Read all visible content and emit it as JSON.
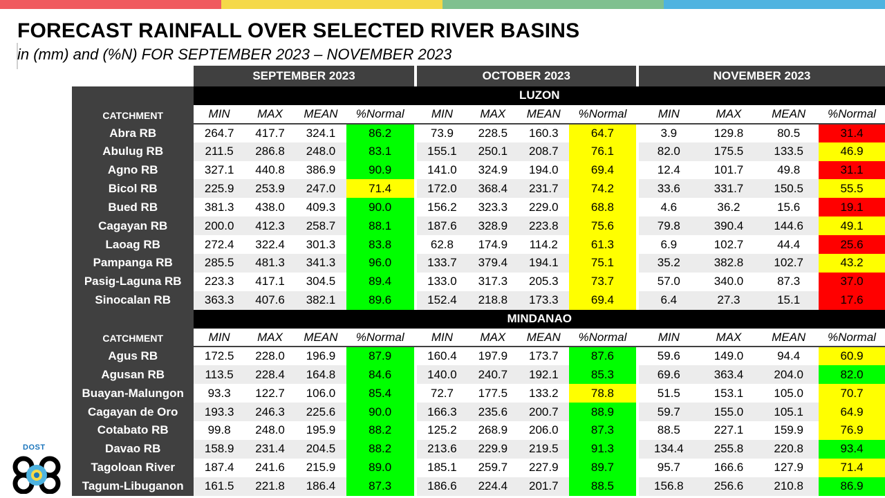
{
  "colors": {
    "bar": [
      "#f05a5f",
      "#f5d948",
      "#7fc08f",
      "#4eb3e0"
    ],
    "header_bg": "#404040",
    "green": "#00ff00",
    "yellow": "#ffff00",
    "red": "#ff0000"
  },
  "title": "FORECAST RAINFALL OVER SELECTED RIVER BASINS",
  "subtitle": "in (mm) and (%N) FOR  SEPTEMBER 2023 – NOVEMBER 2023",
  "months": [
    "SEPTEMBER 2023",
    "OCTOBER 2023",
    "NOVEMBER 2023"
  ],
  "catchment_label": "CATCHMENT",
  "column_labels": [
    "MIN",
    "MAX",
    "MEAN",
    "%Normal"
  ],
  "logo": {
    "text": "DOST",
    "icon": "dost-logo-icon"
  },
  "regions": [
    {
      "name": "LUZON",
      "rows": [
        {
          "name": "Abra RB",
          "sep": [
            "264.7",
            "417.7",
            "324.1",
            "86.2"
          ],
          "sep_c": "g",
          "oct": [
            "73.9",
            "228.5",
            "160.3",
            "64.7"
          ],
          "oct_c": "y",
          "nov": [
            "3.9",
            "129.8",
            "80.5",
            "31.4"
          ],
          "nov_c": "r"
        },
        {
          "name": "Abulug RB",
          "sep": [
            "211.5",
            "286.8",
            "248.0",
            "83.1"
          ],
          "sep_c": "g",
          "oct": [
            "155.1",
            "250.1",
            "208.7",
            "76.1"
          ],
          "oct_c": "y",
          "nov": [
            "82.0",
            "175.5",
            "133.5",
            "46.9"
          ],
          "nov_c": "y"
        },
        {
          "name": "Agno RB",
          "sep": [
            "327.1",
            "440.8",
            "386.9",
            "90.9"
          ],
          "sep_c": "g",
          "oct": [
            "141.0",
            "324.9",
            "194.0",
            "69.4"
          ],
          "oct_c": "y",
          "nov": [
            "12.4",
            "101.7",
            "49.8",
            "31.1"
          ],
          "nov_c": "r"
        },
        {
          "name": "Bicol RB",
          "sep": [
            "225.9",
            "253.9",
            "247.0",
            "71.4"
          ],
          "sep_c": "y",
          "oct": [
            "172.0",
            "368.4",
            "231.7",
            "74.2"
          ],
          "oct_c": "y",
          "nov": [
            "33.6",
            "331.7",
            "150.5",
            "55.5"
          ],
          "nov_c": "y"
        },
        {
          "name": "Bued RB",
          "sep": [
            "381.3",
            "438.0",
            "409.3",
            "90.0"
          ],
          "sep_c": "g",
          "oct": [
            "156.2",
            "323.3",
            "229.0",
            "68.8"
          ],
          "oct_c": "y",
          "nov": [
            "4.6",
            "36.2",
            "15.6",
            "19.1"
          ],
          "nov_c": "r"
        },
        {
          "name": "Cagayan RB",
          "sep": [
            "200.0",
            "412.3",
            "258.7",
            "88.1"
          ],
          "sep_c": "g",
          "oct": [
            "187.6",
            "328.9",
            "223.8",
            "75.6"
          ],
          "oct_c": "y",
          "nov": [
            "79.8",
            "390.4",
            "144.6",
            "49.1"
          ],
          "nov_c": "y"
        },
        {
          "name": "Laoag RB",
          "sep": [
            "272.4",
            "322.4",
            "301.3",
            "83.8"
          ],
          "sep_c": "g",
          "oct": [
            "62.8",
            "174.9",
            "114.2",
            "61.3"
          ],
          "oct_c": "y",
          "nov": [
            "6.9",
            "102.7",
            "44.4",
            "25.6"
          ],
          "nov_c": "r"
        },
        {
          "name": "Pampanga RB",
          "sep": [
            "285.5",
            "481.3",
            "341.3",
            "96.0"
          ],
          "sep_c": "g",
          "oct": [
            "133.7",
            "379.4",
            "194.1",
            "75.1"
          ],
          "oct_c": "y",
          "nov": [
            "35.2",
            "382.8",
            "102.7",
            "43.2"
          ],
          "nov_c": "y"
        },
        {
          "name": "Pasig-Laguna RB",
          "sep": [
            "223.3",
            "417.1",
            "304.5",
            "89.4"
          ],
          "sep_c": "g",
          "oct": [
            "133.0",
            "317.3",
            "205.3",
            "73.7"
          ],
          "oct_c": "y",
          "nov": [
            "57.0",
            "340.0",
            "87.3",
            "37.0"
          ],
          "nov_c": "r"
        },
        {
          "name": "Sinocalan RB",
          "sep": [
            "363.3",
            "407.6",
            "382.1",
            "89.6"
          ],
          "sep_c": "g",
          "oct": [
            "152.4",
            "218.8",
            "173.3",
            "69.4"
          ],
          "oct_c": "y",
          "nov": [
            "6.4",
            "27.3",
            "15.1",
            "17.6"
          ],
          "nov_c": "r"
        }
      ]
    },
    {
      "name": "MINDANAO",
      "rows": [
        {
          "name": "Agus RB",
          "sep": [
            "172.5",
            "228.0",
            "196.9",
            "87.9"
          ],
          "sep_c": "g",
          "oct": [
            "160.4",
            "197.9",
            "173.7",
            "87.6"
          ],
          "oct_c": "g",
          "nov": [
            "59.6",
            "149.0",
            "94.4",
            "60.9"
          ],
          "nov_c": "y"
        },
        {
          "name": "Agusan RB",
          "sep": [
            "113.5",
            "228.4",
            "164.8",
            "84.6"
          ],
          "sep_c": "g",
          "oct": [
            "140.0",
            "240.7",
            "192.1",
            "85.3"
          ],
          "oct_c": "g",
          "nov": [
            "69.6",
            "363.4",
            "204.0",
            "82.0"
          ],
          "nov_c": "g"
        },
        {
          "name": "Buayan-Malungon",
          "sep": [
            "93.3",
            "122.7",
            "106.0",
            "85.4"
          ],
          "sep_c": "g",
          "oct": [
            "72.7",
            "177.5",
            "133.2",
            "78.8"
          ],
          "oct_c": "y",
          "nov": [
            "51.5",
            "153.1",
            "105.0",
            "70.7"
          ],
          "nov_c": "y"
        },
        {
          "name": "Cagayan de Oro",
          "sep": [
            "193.3",
            "246.3",
            "225.6",
            "90.0"
          ],
          "sep_c": "g",
          "oct": [
            "166.3",
            "235.6",
            "200.7",
            "88.9"
          ],
          "oct_c": "g",
          "nov": [
            "59.7",
            "155.0",
            "105.1",
            "64.9"
          ],
          "nov_c": "y"
        },
        {
          "name": "Cotabato RB",
          "sep": [
            "99.8",
            "248.0",
            "195.9",
            "88.2"
          ],
          "sep_c": "g",
          "oct": [
            "125.2",
            "268.9",
            "206.0",
            "87.3"
          ],
          "oct_c": "g",
          "nov": [
            "88.5",
            "227.1",
            "159.9",
            "76.9"
          ],
          "nov_c": "y"
        },
        {
          "name": "Davao RB",
          "sep": [
            "158.9",
            "231.4",
            "204.5",
            "88.2"
          ],
          "sep_c": "g",
          "oct": [
            "213.6",
            "229.9",
            "219.5",
            "91.3"
          ],
          "oct_c": "g",
          "nov": [
            "134.4",
            "255.8",
            "220.8",
            "93.4"
          ],
          "nov_c": "g"
        },
        {
          "name": "Tagoloan River",
          "sep": [
            "187.4",
            "241.6",
            "215.9",
            "89.0"
          ],
          "sep_c": "g",
          "oct": [
            "185.1",
            "259.7",
            "227.9",
            "89.7"
          ],
          "oct_c": "g",
          "nov": [
            "95.7",
            "166.6",
            "127.9",
            "71.4"
          ],
          "nov_c": "y"
        },
        {
          "name": "Tagum-Libuganon",
          "sep": [
            "161.5",
            "221.8",
            "186.4",
            "87.3"
          ],
          "sep_c": "g",
          "oct": [
            "186.6",
            "224.4",
            "201.7",
            "88.5"
          ],
          "oct_c": "g",
          "nov": [
            "156.8",
            "256.6",
            "210.8",
            "86.9"
          ],
          "nov_c": "g"
        }
      ]
    }
  ]
}
